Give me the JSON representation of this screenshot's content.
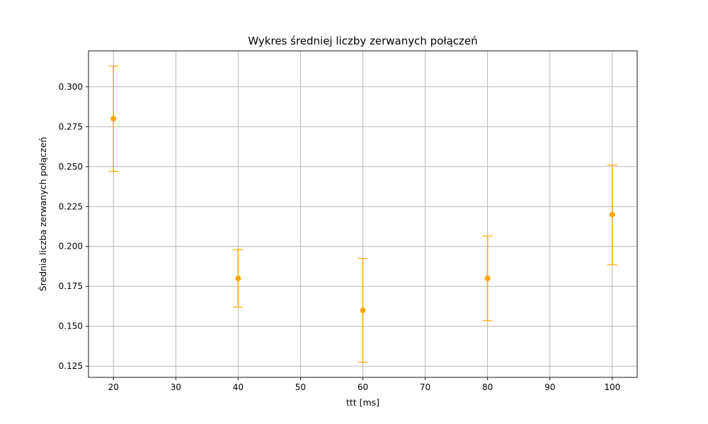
{
  "chart_data": {
    "type": "scatter",
    "title": "Wykres średniej liczby zerwanych połączeń",
    "xlabel": "ttt [ms]",
    "ylabel": "Średnia liczba zerwanych połączeń",
    "xlim": [
      16,
      104
    ],
    "ylim": [
      0.118,
      0.3225
    ],
    "x_ticks": [
      20,
      30,
      40,
      50,
      60,
      70,
      80,
      90,
      100
    ],
    "x_tick_labels": [
      "20",
      "30",
      "40",
      "50",
      "60",
      "70",
      "80",
      "90",
      "100"
    ],
    "y_ticks": [
      0.125,
      0.15,
      0.175,
      0.2,
      0.225,
      0.25,
      0.275,
      0.3
    ],
    "y_tick_labels": [
      "0.125",
      "0.150",
      "0.175",
      "0.200",
      "0.225",
      "0.250",
      "0.275",
      "0.300"
    ],
    "grid": true,
    "series": [
      {
        "x": [
          20,
          40,
          60,
          80,
          100
        ],
        "y": [
          0.28,
          0.18,
          0.16,
          0.18,
          0.22
        ],
        "yerr_low": [
          0.247,
          0.162,
          0.1275,
          0.1535,
          0.1885
        ],
        "yerr_high": [
          0.313,
          0.198,
          0.1925,
          0.2065,
          0.251
        ],
        "color": "#ffa500"
      }
    ]
  }
}
